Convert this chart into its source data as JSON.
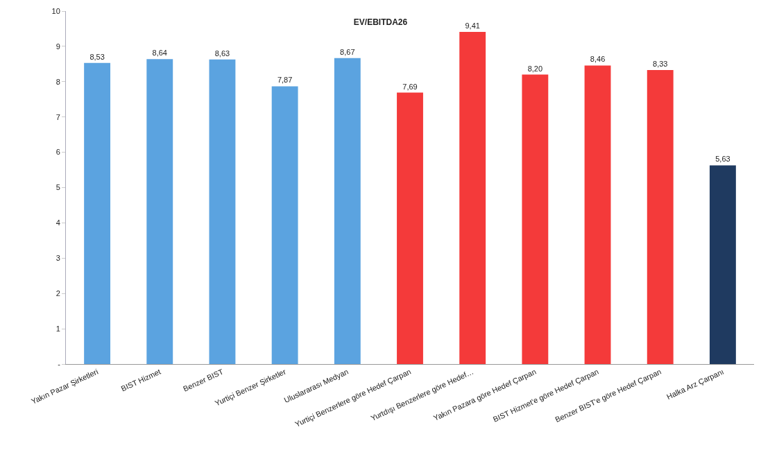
{
  "chart_data": {
    "type": "bar",
    "title": "EV/EBITDA26",
    "categories": [
      "Yakın Pazar Şirketleri",
      "BIST Hizmet",
      "Benzer BIST",
      "Yurtiçi Benzer Şirketler",
      "Uluslararası Medyan",
      "Yurtiçi Benzerlere göre Hedef Çarpan",
      "Yurtdışı Benzerlere göre Hedef…",
      "Yakın Pazara göre Hedef Çarpan",
      "BIST Hizmet'e göre Hedef Çarpan",
      "Benzer BIST'e göre Hedef Çarpan",
      "Halka Arz Çarpanı"
    ],
    "values": [
      8.53,
      8.64,
      8.63,
      7.87,
      8.67,
      7.69,
      9.41,
      8.2,
      8.46,
      8.33,
      5.63
    ],
    "value_labels": [
      "8,53",
      "8,64",
      "8,63",
      "7,87",
      "8,67",
      "7,69",
      "9,41",
      "8,20",
      "8,46",
      "8,33",
      "5,63"
    ],
    "colors": [
      "#5ba3e0",
      "#5ba3e0",
      "#5ba3e0",
      "#5ba3e0",
      "#5ba3e0",
      "#f43a3a",
      "#f43a3a",
      "#f43a3a",
      "#f43a3a",
      "#f43a3a",
      "#1f3a60"
    ],
    "ylim": [
      0,
      10
    ],
    "yticks": [
      {
        "value": 0,
        "label": "-"
      },
      1,
      2,
      3,
      4,
      5,
      6,
      7,
      8,
      9,
      10
    ]
  }
}
